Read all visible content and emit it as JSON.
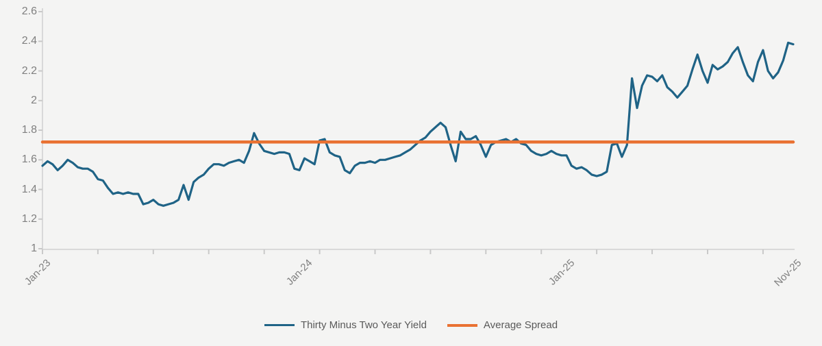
{
  "chart_data": {
    "type": "line",
    "title": "",
    "x_axis": {
      "labels": [
        "Jan-23",
        "Jan-24",
        "Jan-25",
        "Nov-25"
      ],
      "label_indices": [
        0,
        52,
        104,
        149
      ],
      "unit": "weekly observations, Jan-2023 through Nov-2025",
      "tick_every": 11
    },
    "y_axis": {
      "min": 1,
      "max": 2.6,
      "step": 0.2,
      "tick_labels": [
        "1",
        "1.2",
        "1.4",
        "1.6",
        "1.8",
        "2",
        "2.2",
        "2.4",
        "2.6"
      ],
      "tick_values": [
        1,
        1.2,
        1.4,
        1.6,
        1.8,
        2,
        2.2,
        2.4,
        2.6
      ]
    },
    "grid": "off",
    "legend_position": "bottom-center",
    "series": [
      {
        "name": "Thirty Minus Two Year Yield",
        "type": "line",
        "color": "#1F6386",
        "values": [
          1.56,
          1.59,
          1.57,
          1.53,
          1.56,
          1.6,
          1.58,
          1.55,
          1.54,
          1.54,
          1.52,
          1.47,
          1.46,
          1.41,
          1.37,
          1.38,
          1.37,
          1.38,
          1.37,
          1.37,
          1.3,
          1.31,
          1.33,
          1.3,
          1.29,
          1.3,
          1.31,
          1.33,
          1.43,
          1.33,
          1.45,
          1.48,
          1.5,
          1.54,
          1.57,
          1.57,
          1.56,
          1.58,
          1.59,
          1.6,
          1.58,
          1.66,
          1.78,
          1.71,
          1.66,
          1.65,
          1.64,
          1.65,
          1.65,
          1.64,
          1.54,
          1.53,
          1.61,
          1.59,
          1.57,
          1.73,
          1.74,
          1.65,
          1.63,
          1.62,
          1.53,
          1.51,
          1.56,
          1.58,
          1.58,
          1.59,
          1.58,
          1.6,
          1.6,
          1.61,
          1.62,
          1.63,
          1.65,
          1.67,
          1.7,
          1.73,
          1.75,
          1.79,
          1.82,
          1.85,
          1.82,
          1.7,
          1.59,
          1.79,
          1.74,
          1.74,
          1.76,
          1.7,
          1.62,
          1.7,
          1.72,
          1.73,
          1.74,
          1.72,
          1.74,
          1.71,
          1.7,
          1.66,
          1.64,
          1.63,
          1.64,
          1.66,
          1.64,
          1.63,
          1.63,
          1.56,
          1.54,
          1.55,
          1.53,
          1.5,
          1.49,
          1.5,
          1.52,
          1.7,
          1.71,
          1.62,
          1.7,
          2.15,
          1.95,
          2.1,
          2.17,
          2.16,
          2.13,
          2.17,
          2.09,
          2.06,
          2.02,
          2.06,
          2.1,
          2.21,
          2.31,
          2.2,
          2.12,
          2.24,
          2.21,
          2.23,
          2.26,
          2.32,
          2.36,
          2.26,
          2.17,
          2.13,
          2.26,
          2.34,
          2.2,
          2.15,
          2.19,
          2.27,
          2.39,
          2.38
        ]
      },
      {
        "name": "Average Spread",
        "type": "constant-line",
        "color": "#E97132",
        "value": 1.72
      }
    ]
  },
  "legend": {
    "yield_label": "Thirty Minus Two Year Yield",
    "average_label": "Average Spread"
  },
  "colors": {
    "background": "#F4F4F3",
    "series_line": "#1F6386",
    "average_line": "#E97132",
    "axis_line": "#D9D9D9",
    "tick": "#C9C9C9",
    "axis_label_text": "#7F7F7F",
    "legend_text": "#595959"
  }
}
